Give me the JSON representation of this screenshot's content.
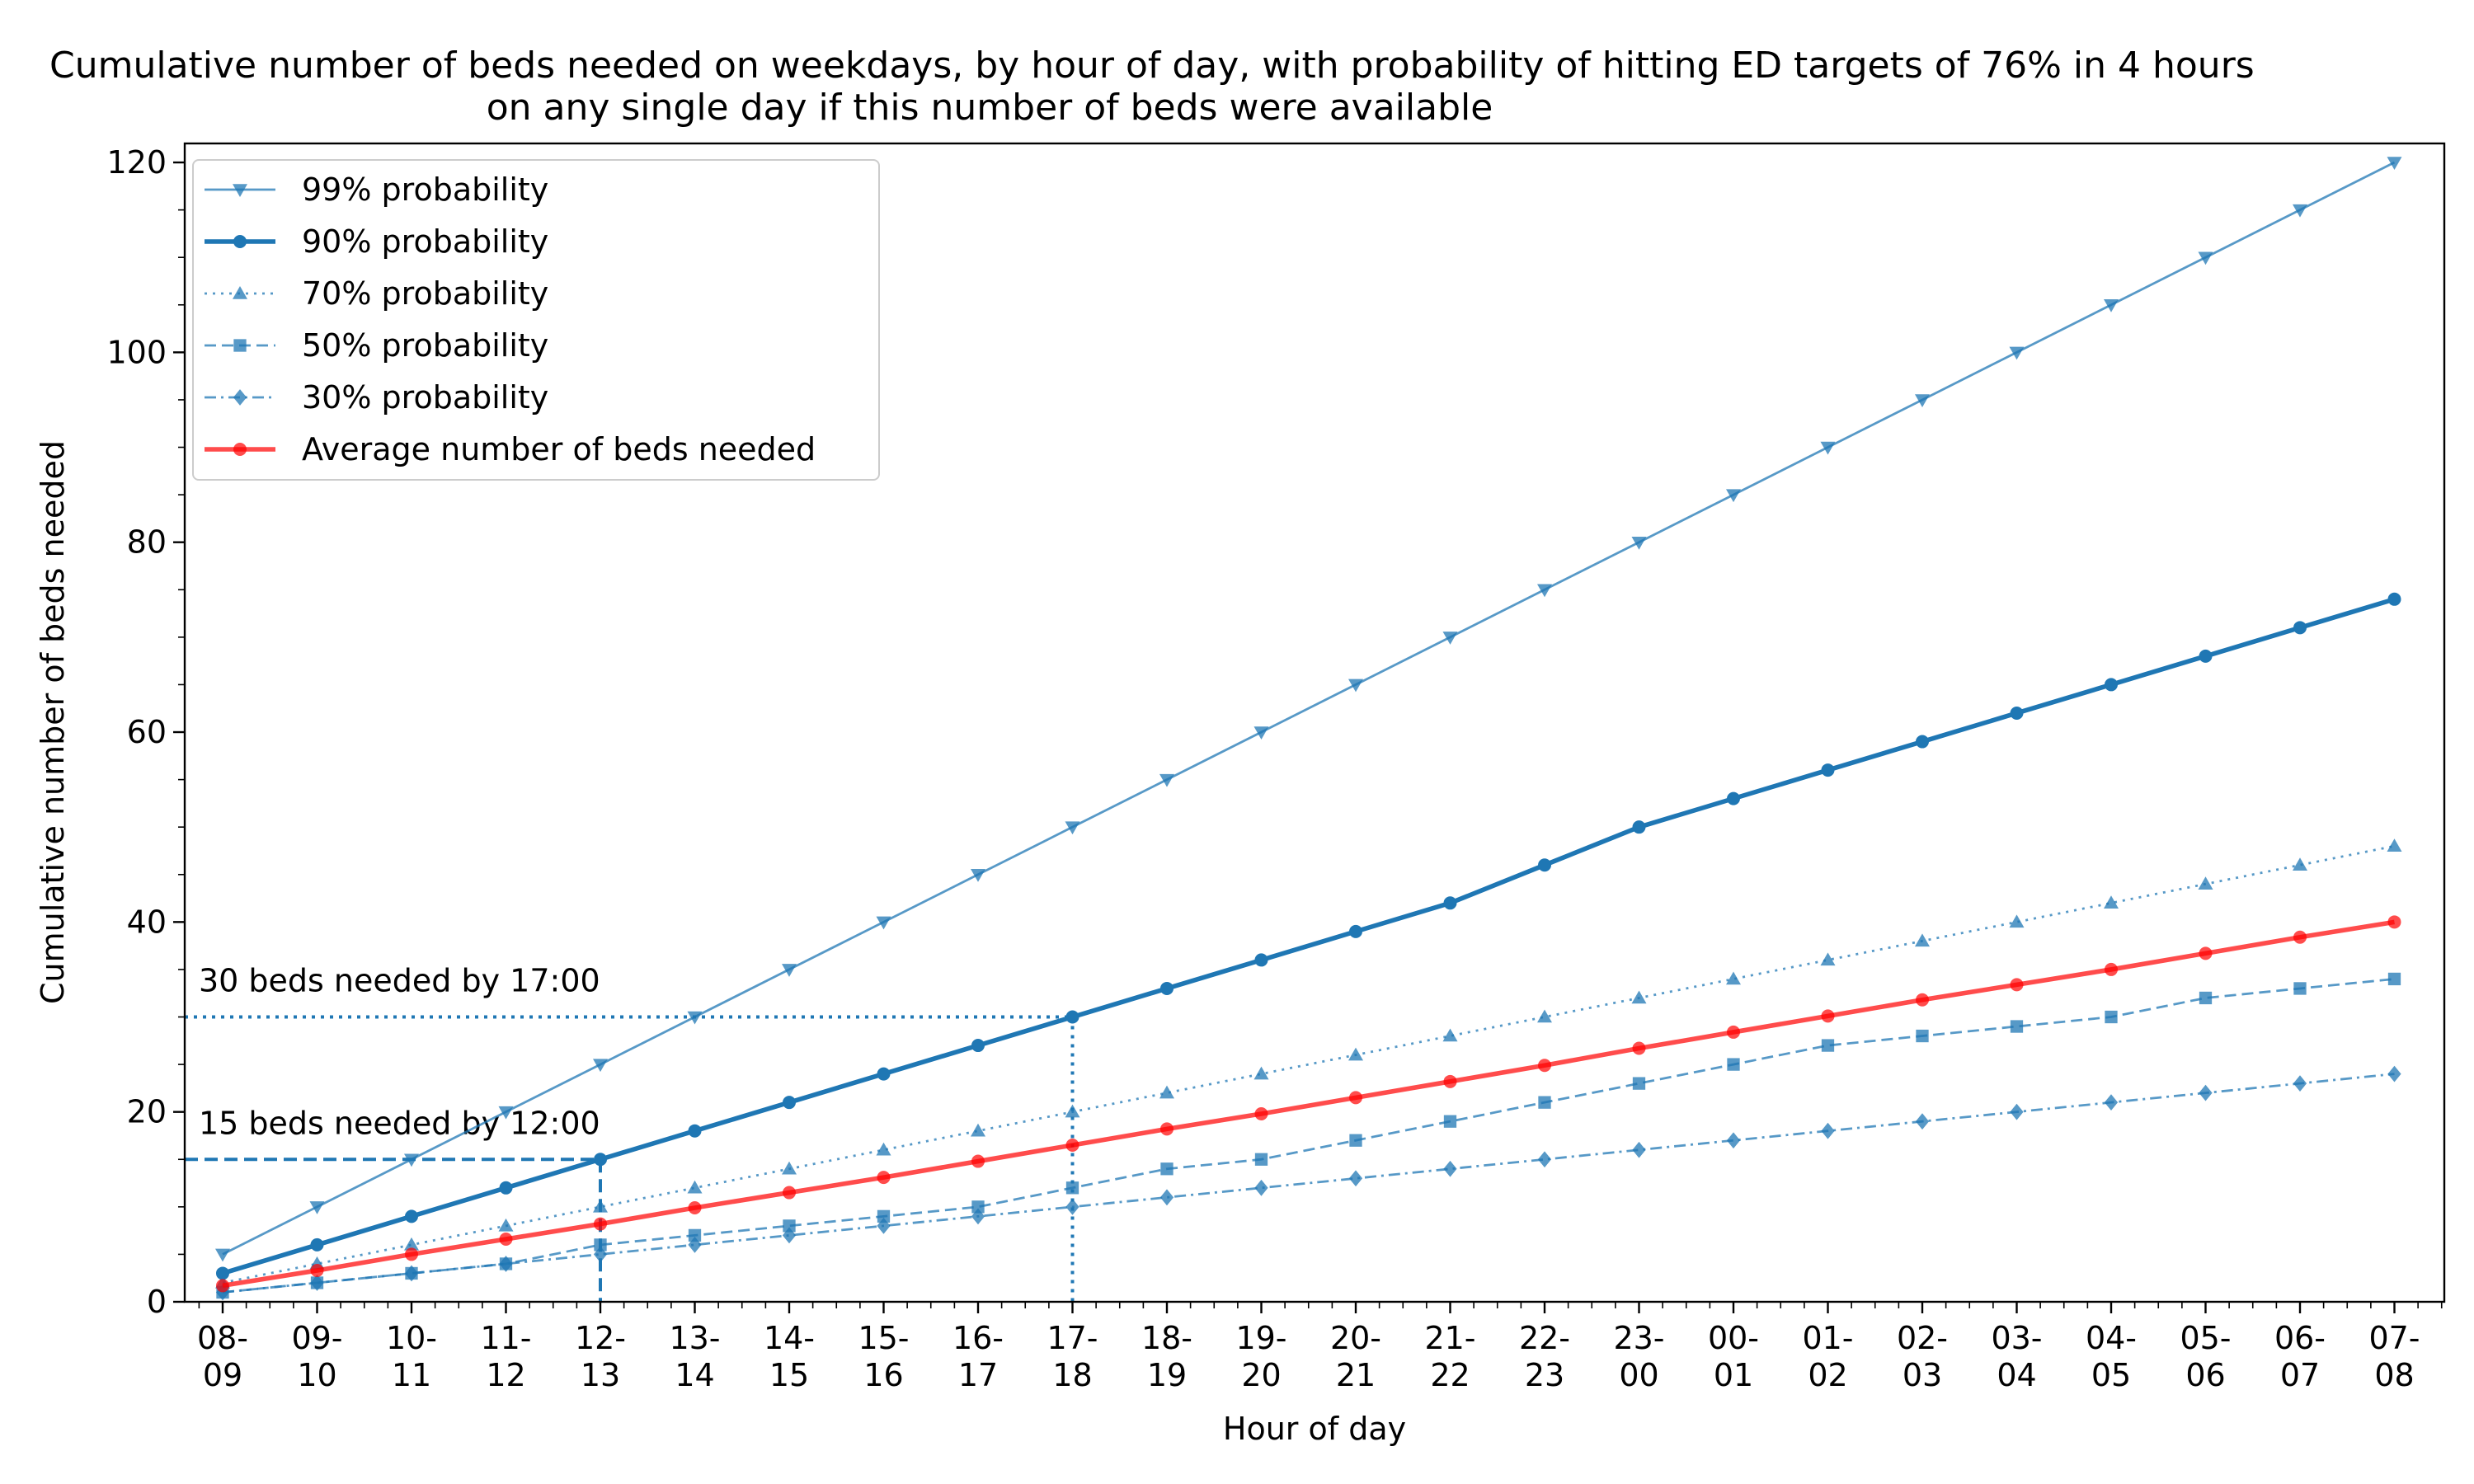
{
  "chart_data": {
    "type": "line",
    "title": "Cumulative number of beds needed on weekdays, by hour of day, with probability of hitting ED targets of 76% in 4 hours",
    "subtitle": "on any single day if this number of beds were available",
    "xlabel": "Hour of day",
    "ylabel": "Cumulative number of beds needed",
    "ylim": [
      0,
      122
    ],
    "yticks": [
      0,
      20,
      40,
      60,
      80,
      100,
      120
    ],
    "grid": false,
    "legend_position": "top-left",
    "categories": [
      [
        "08-",
        "09"
      ],
      [
        "09-",
        "10"
      ],
      [
        "10-",
        "11"
      ],
      [
        "11-",
        "12"
      ],
      [
        "12-",
        "13"
      ],
      [
        "13-",
        "14"
      ],
      [
        "14-",
        "15"
      ],
      [
        "15-",
        "16"
      ],
      [
        "16-",
        "17"
      ],
      [
        "17-",
        "18"
      ],
      [
        "18-",
        "19"
      ],
      [
        "19-",
        "20"
      ],
      [
        "20-",
        "21"
      ],
      [
        "21-",
        "22"
      ],
      [
        "22-",
        "23"
      ],
      [
        "23-",
        "00"
      ],
      [
        "00-",
        "01"
      ],
      [
        "01-",
        "02"
      ],
      [
        "02-",
        "03"
      ],
      [
        "03-",
        "04"
      ],
      [
        "04-",
        "05"
      ],
      [
        "05-",
        "06"
      ],
      [
        "06-",
        "07"
      ],
      [
        "07-",
        "08"
      ]
    ],
    "series": [
      {
        "name": "99% probability",
        "color": "#1f77b4",
        "opacity": 0.75,
        "style": "solid",
        "marker": "triangle-down",
        "width": "thin",
        "values": [
          5,
          10,
          15,
          20,
          25,
          30,
          35,
          40,
          45,
          50,
          55,
          60,
          65,
          70,
          75,
          80,
          85,
          90,
          95,
          100,
          105,
          110,
          115,
          120
        ]
      },
      {
        "name": "90% probability",
        "color": "#1f77b4",
        "opacity": 1,
        "style": "solid",
        "marker": "circle",
        "width": "thick",
        "values": [
          3,
          6,
          9,
          12,
          15,
          18,
          21,
          24,
          27,
          30,
          33,
          36,
          39,
          42,
          46,
          50,
          53,
          56,
          59,
          62,
          65,
          68,
          71,
          74
        ]
      },
      {
        "name": "70% probability",
        "color": "#1f77b4",
        "opacity": 0.75,
        "style": "dotted",
        "marker": "triangle-up",
        "width": "thin",
        "values": [
          2,
          4,
          6,
          8,
          10,
          12,
          14,
          16,
          18,
          20,
          22,
          24,
          26,
          28,
          30,
          32,
          34,
          36,
          38,
          40,
          42,
          44,
          46,
          48
        ]
      },
      {
        "name": "50% probability",
        "color": "#1f77b4",
        "opacity": 0.75,
        "style": "dashed",
        "marker": "square",
        "width": "thin",
        "values": [
          1,
          2,
          3,
          4,
          6,
          7,
          8,
          9,
          10,
          12,
          14,
          15,
          17,
          19,
          21,
          23,
          25,
          27,
          28,
          29,
          30,
          32,
          33,
          34
        ]
      },
      {
        "name": "30% probability",
        "color": "#1f77b4",
        "opacity": 0.75,
        "style": "dashdot",
        "marker": "diamond",
        "width": "thin",
        "values": [
          1,
          2,
          3,
          4,
          5,
          6,
          7,
          8,
          9,
          10,
          11,
          12,
          13,
          14,
          15,
          16,
          17,
          18,
          19,
          20,
          21,
          22,
          23,
          24
        ]
      },
      {
        "name": "Average number of beds needed",
        "color": "#ff0000",
        "opacity": 0.7,
        "style": "solid",
        "marker": "circle",
        "width": "thick",
        "values": [
          1.7,
          3.3,
          5.0,
          6.6,
          8.2,
          9.9,
          11.5,
          13.1,
          14.8,
          16.5,
          18.2,
          19.8,
          21.5,
          23.2,
          24.9,
          26.7,
          28.4,
          30.1,
          31.8,
          33.4,
          35.0,
          36.7,
          38.4,
          40.0
        ]
      }
    ],
    "annotations": [
      {
        "text": "30 beds needed by 17:00",
        "value": 30,
        "category_index": 9,
        "style": "dotted"
      },
      {
        "text": "15 beds needed by 12:00",
        "value": 15,
        "category_index": 4,
        "style": "dashed"
      }
    ]
  }
}
